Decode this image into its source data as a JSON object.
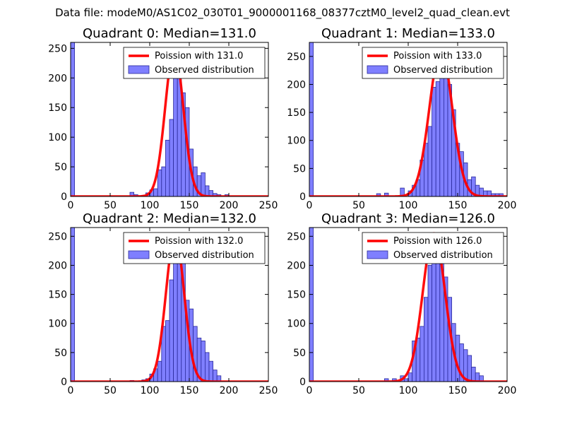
{
  "figure": {
    "title": "Data file: modeM0/AS1C02_030T01_9000001168_08377cztM0_level2_quad_clean.evt"
  },
  "colors": {
    "poisson_line": "#ff0000",
    "bar_fill": "#7f7fff",
    "bar_edge": "#2a2a9a",
    "frame": "#000000"
  },
  "chart_data": [
    {
      "type": "bar",
      "title": "Quadrant 0: Median=131.0",
      "xlim": [
        0,
        250
      ],
      "ylim": [
        0,
        260
      ],
      "xticks": [
        0,
        50,
        100,
        150,
        200,
        250
      ],
      "yticks": [
        0,
        50,
        100,
        150,
        200,
        250
      ],
      "bin_width": 5,
      "legend": {
        "location": "top-right",
        "line_label": "Poission with 131.0",
        "bar_label": "Observed distribution"
      },
      "poisson": {
        "mean": 131.0,
        "peak": 248
      },
      "bins": [
        {
          "x": 0,
          "v": 260
        },
        {
          "x": 75,
          "v": 7
        },
        {
          "x": 80,
          "v": 3
        },
        {
          "x": 90,
          "v": 2
        },
        {
          "x": 95,
          "v": 6
        },
        {
          "x": 100,
          "v": 11
        },
        {
          "x": 105,
          "v": 13
        },
        {
          "x": 110,
          "v": 45
        },
        {
          "x": 115,
          "v": 50
        },
        {
          "x": 120,
          "v": 95
        },
        {
          "x": 125,
          "v": 130
        },
        {
          "x": 130,
          "v": 245
        },
        {
          "x": 135,
          "v": 235
        },
        {
          "x": 140,
          "v": 175
        },
        {
          "x": 145,
          "v": 150
        },
        {
          "x": 150,
          "v": 80
        },
        {
          "x": 155,
          "v": 50
        },
        {
          "x": 160,
          "v": 35
        },
        {
          "x": 165,
          "v": 40
        },
        {
          "x": 170,
          "v": 18
        },
        {
          "x": 175,
          "v": 10
        },
        {
          "x": 180,
          "v": 5
        },
        {
          "x": 185,
          "v": 3
        },
        {
          "x": 195,
          "v": 3
        }
      ]
    },
    {
      "type": "bar",
      "title": "Quadrant 1: Median=133.0",
      "xlim": [
        0,
        200
      ],
      "ylim": [
        0,
        275
      ],
      "xticks": [
        0,
        50,
        100,
        150,
        200
      ],
      "yticks": [
        0,
        50,
        100,
        150,
        200,
        250
      ],
      "bin_width": 4,
      "legend": {
        "location": "top-right",
        "line_label": "Poission with 133.0",
        "bar_label": "Observed distribution"
      },
      "poisson": {
        "mean": 133.0,
        "peak": 262
      },
      "bins": [
        {
          "x": 0,
          "v": 275
        },
        {
          "x": 68,
          "v": 5
        },
        {
          "x": 76,
          "v": 6
        },
        {
          "x": 92,
          "v": 15
        },
        {
          "x": 100,
          "v": 10
        },
        {
          "x": 104,
          "v": 20
        },
        {
          "x": 108,
          "v": 30
        },
        {
          "x": 112,
          "v": 65
        },
        {
          "x": 116,
          "v": 95
        },
        {
          "x": 120,
          "v": 125
        },
        {
          "x": 124,
          "v": 195
        },
        {
          "x": 128,
          "v": 205
        },
        {
          "x": 132,
          "v": 240
        },
        {
          "x": 136,
          "v": 235
        },
        {
          "x": 140,
          "v": 200
        },
        {
          "x": 144,
          "v": 155
        },
        {
          "x": 148,
          "v": 95
        },
        {
          "x": 152,
          "v": 80
        },
        {
          "x": 156,
          "v": 60
        },
        {
          "x": 160,
          "v": 30
        },
        {
          "x": 164,
          "v": 35
        },
        {
          "x": 168,
          "v": 20
        },
        {
          "x": 172,
          "v": 15
        },
        {
          "x": 176,
          "v": 10
        },
        {
          "x": 180,
          "v": 10
        },
        {
          "x": 184,
          "v": 5
        },
        {
          "x": 188,
          "v": 5
        },
        {
          "x": 192,
          "v": 5
        }
      ]
    },
    {
      "type": "bar",
      "title": "Quadrant 2: Median=132.0",
      "xlim": [
        0,
        250
      ],
      "ylim": [
        0,
        265
      ],
      "xticks": [
        0,
        50,
        100,
        150,
        200,
        250
      ],
      "yticks": [
        0,
        50,
        100,
        150,
        200,
        250
      ],
      "bin_width": 5,
      "legend": {
        "location": "top-right",
        "line_label": "Poission with 132.0",
        "bar_label": "Observed distribution"
      },
      "poisson": {
        "mean": 132.0,
        "peak": 252
      },
      "bins": [
        {
          "x": 0,
          "v": 265
        },
        {
          "x": 75,
          "v": 2
        },
        {
          "x": 90,
          "v": 3
        },
        {
          "x": 95,
          "v": 5
        },
        {
          "x": 100,
          "v": 13
        },
        {
          "x": 105,
          "v": 22
        },
        {
          "x": 110,
          "v": 35
        },
        {
          "x": 115,
          "v": 95
        },
        {
          "x": 120,
          "v": 105
        },
        {
          "x": 125,
          "v": 175
        },
        {
          "x": 130,
          "v": 250
        },
        {
          "x": 135,
          "v": 245
        },
        {
          "x": 140,
          "v": 205
        },
        {
          "x": 145,
          "v": 140
        },
        {
          "x": 150,
          "v": 125
        },
        {
          "x": 155,
          "v": 95
        },
        {
          "x": 160,
          "v": 75
        },
        {
          "x": 165,
          "v": 70
        },
        {
          "x": 170,
          "v": 50
        },
        {
          "x": 175,
          "v": 35
        },
        {
          "x": 180,
          "v": 20
        },
        {
          "x": 185,
          "v": 10
        }
      ]
    },
    {
      "type": "bar",
      "title": "Quadrant 3: Median=126.0",
      "xlim": [
        0,
        200
      ],
      "ylim": [
        0,
        265
      ],
      "xticks": [
        0,
        50,
        100,
        150,
        200
      ],
      "yticks": [
        0,
        50,
        100,
        150,
        200,
        250
      ],
      "bin_width": 4,
      "legend": {
        "location": "top-right",
        "line_label": "Poission with 126.0",
        "bar_label": "Observed distribution"
      },
      "poisson": {
        "mean": 126.0,
        "peak": 255
      },
      "bins": [
        {
          "x": 0,
          "v": 265
        },
        {
          "x": 76,
          "v": 5
        },
        {
          "x": 84,
          "v": 5
        },
        {
          "x": 92,
          "v": 10
        },
        {
          "x": 96,
          "v": 5
        },
        {
          "x": 100,
          "v": 15
        },
        {
          "x": 104,
          "v": 70
        },
        {
          "x": 108,
          "v": 75
        },
        {
          "x": 112,
          "v": 95
        },
        {
          "x": 116,
          "v": 145
        },
        {
          "x": 120,
          "v": 200
        },
        {
          "x": 124,
          "v": 230
        },
        {
          "x": 128,
          "v": 235
        },
        {
          "x": 132,
          "v": 205
        },
        {
          "x": 136,
          "v": 180
        },
        {
          "x": 140,
          "v": 145
        },
        {
          "x": 144,
          "v": 100
        },
        {
          "x": 148,
          "v": 80
        },
        {
          "x": 152,
          "v": 65
        },
        {
          "x": 156,
          "v": 55
        },
        {
          "x": 160,
          "v": 45
        },
        {
          "x": 164,
          "v": 25
        },
        {
          "x": 168,
          "v": 15
        },
        {
          "x": 172,
          "v": 10
        }
      ]
    }
  ]
}
